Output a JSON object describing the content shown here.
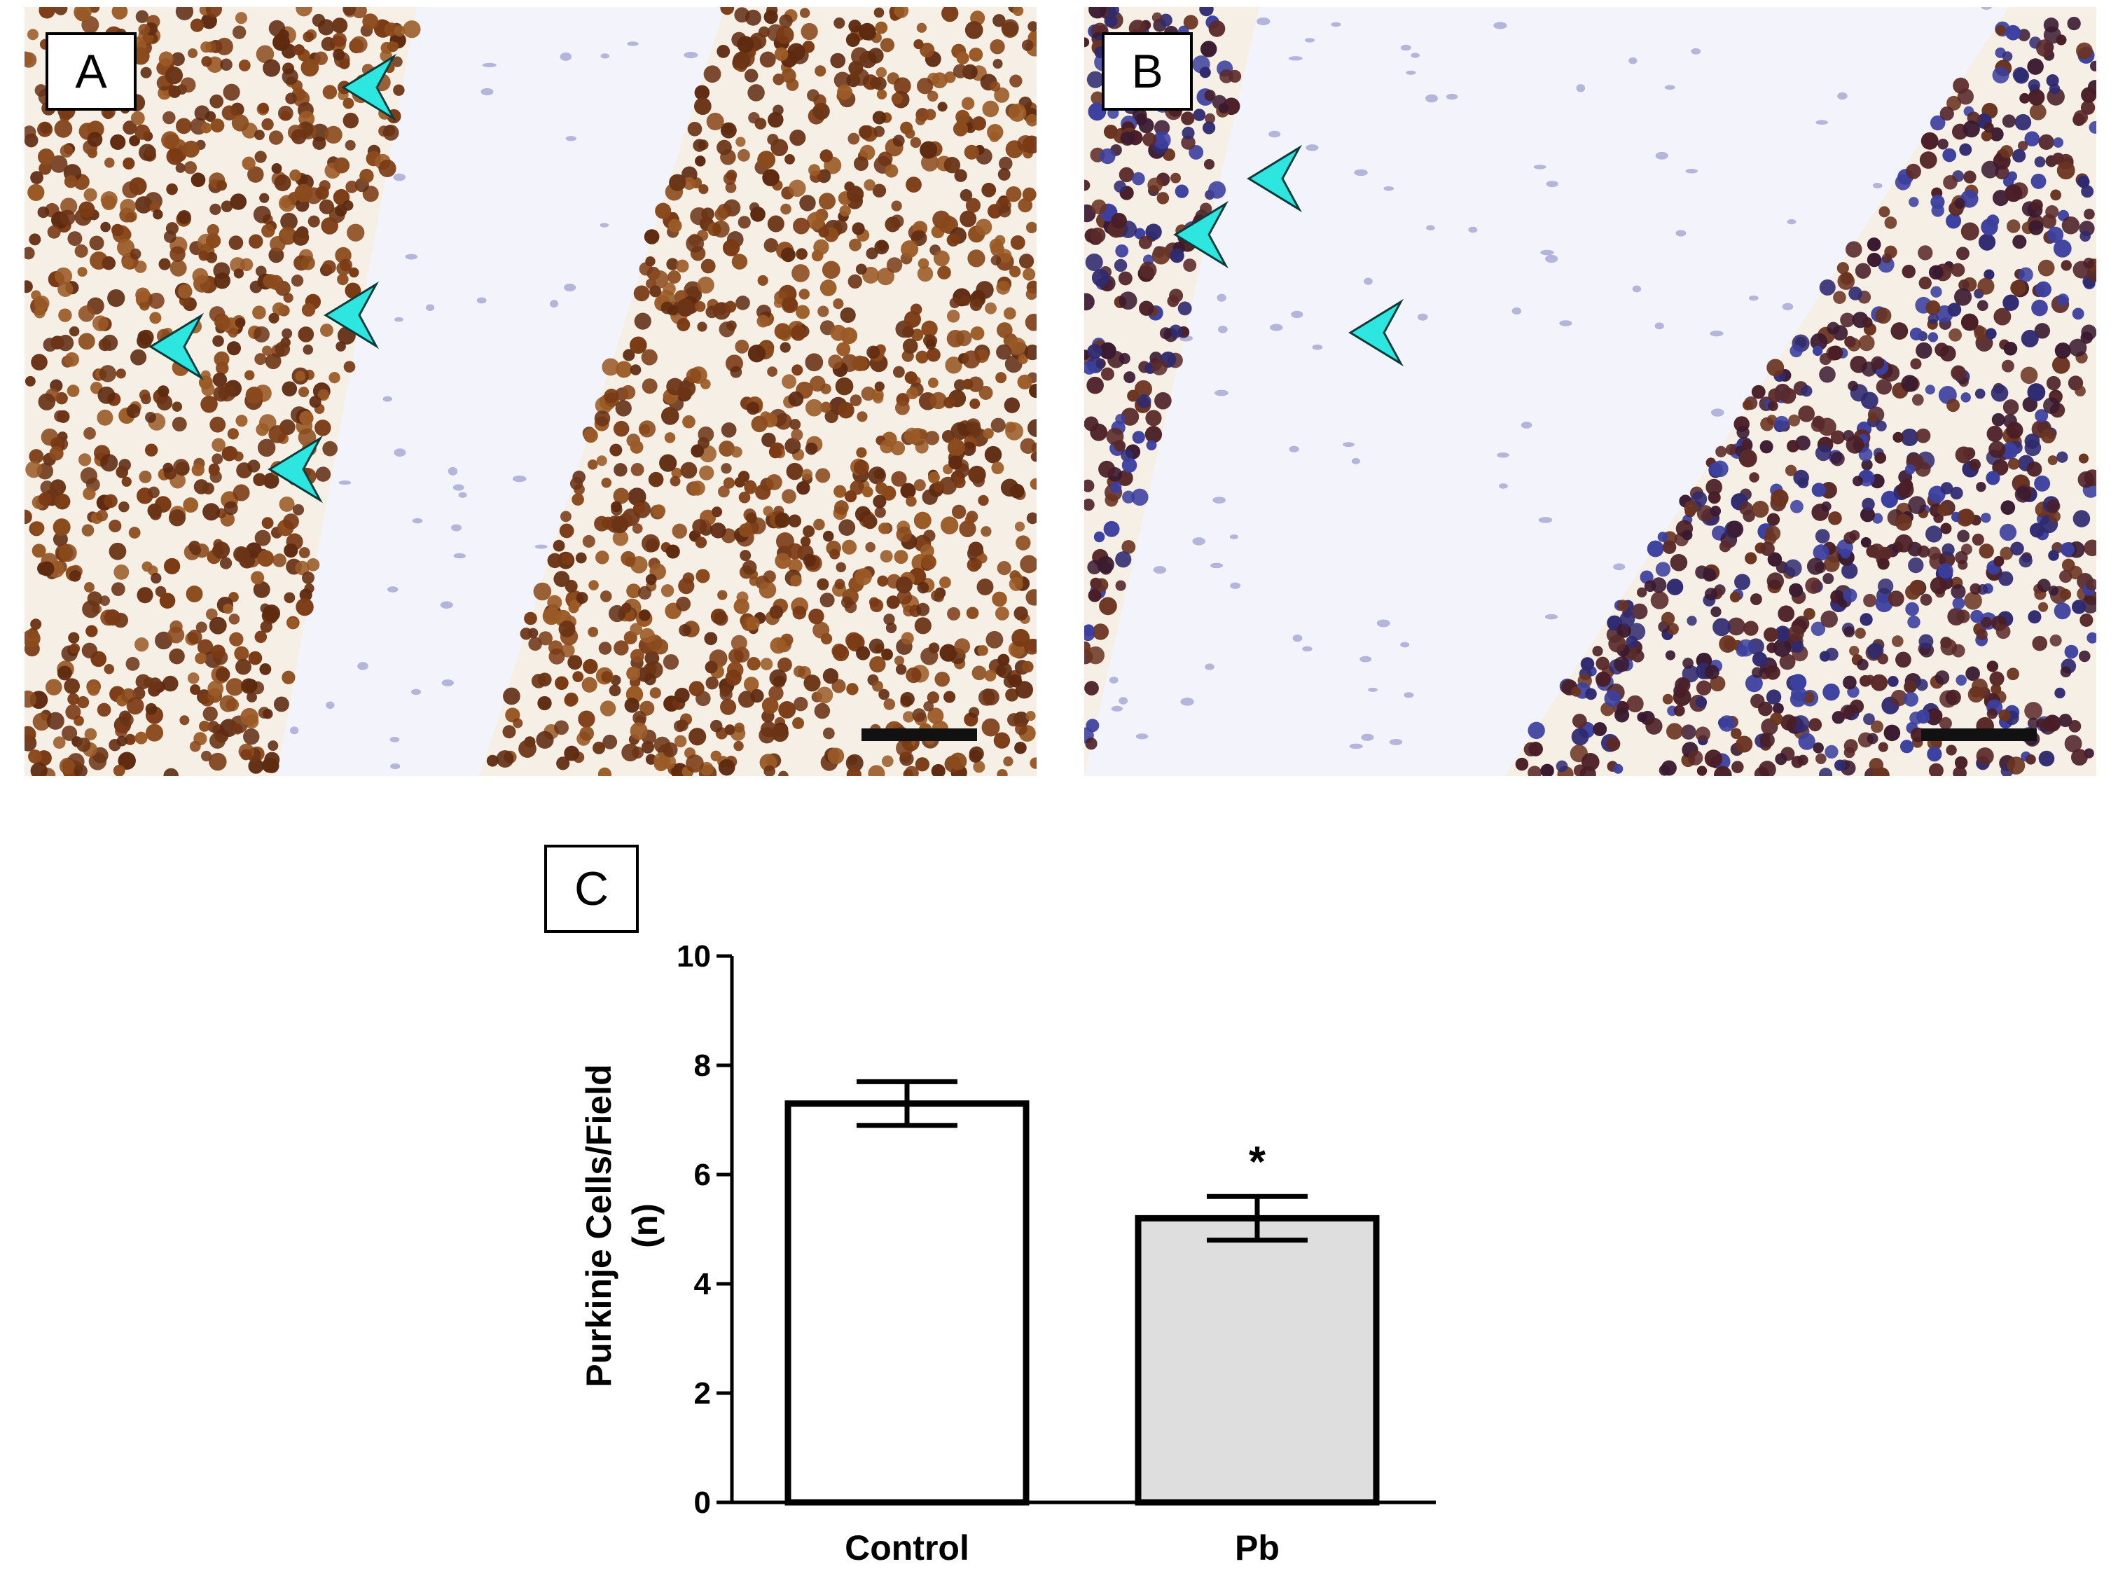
{
  "panels": {
    "a": {
      "label": "A"
    },
    "b": {
      "label": "B"
    },
    "c": {
      "label": "C"
    }
  },
  "colors": {
    "background": "#ffffff",
    "stain_brown": "#7a3a1a",
    "stain_dark": "#3d1f24",
    "nuclei_blue": "#3b3f9e",
    "arrowhead": "#2ee6e0",
    "control_bar": "#ffffff",
    "pb_bar": "#dedede"
  },
  "chart_data": {
    "type": "bar",
    "categories": [
      "Control",
      "Pb"
    ],
    "values": [
      7.3,
      5.2
    ],
    "errors": [
      0.4,
      0.4
    ],
    "annotations": [
      {
        "category": "Pb",
        "text": "*"
      }
    ],
    "ylabel_line1": "Purkinje Cells/Field",
    "ylabel_line2": "(n)",
    "ylim": [
      0,
      10
    ],
    "yticks": [
      0,
      2,
      4,
      6,
      8,
      10
    ],
    "grid": false
  }
}
